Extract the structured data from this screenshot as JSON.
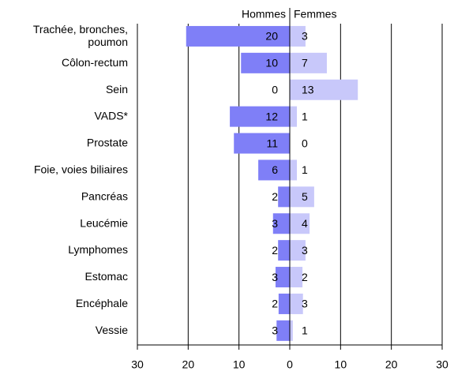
{
  "chart_data": {
    "type": "butterfly",
    "categories": [
      "Trachée, bronches,\npoumon",
      "Côlon-rectum",
      "Sein",
      "VADS*",
      "Prostate",
      "Foie, voies biliaires",
      "Pancréas",
      "Leucémie",
      "Lymphomes",
      "Estomac",
      "Encéphale",
      "Vessie"
    ],
    "series": [
      {
        "name": "Hommes",
        "color": "#7f7ff7",
        "values": [
          -20.4,
          -9.6,
          0,
          -11.8,
          -11.0,
          -6.2,
          -2.3,
          -3.3,
          -2.3,
          -2.8,
          -2.2,
          -2.6
        ],
        "value_labels": [
          "20",
          "10",
          "0",
          "12",
          "11",
          "6",
          "2",
          "3",
          "2",
          "3",
          "2",
          "3"
        ]
      },
      {
        "name": "Femmes",
        "color": "#c8c8fa",
        "values": [
          3.1,
          7.3,
          13.4,
          1.4,
          0,
          1.4,
          4.8,
          3.9,
          3.1,
          2.5,
          2.6,
          0.6
        ],
        "value_labels": [
          "3",
          "7",
          "13",
          "1",
          "0",
          "1",
          "5",
          "4",
          "3",
          "2",
          "3",
          "1"
        ]
      }
    ],
    "xlim": [
      -30,
      30
    ],
    "xticks": [
      {
        "value": -30,
        "label": "30"
      },
      {
        "value": -20,
        "label": "20"
      },
      {
        "value": -10,
        "label": "10"
      },
      0,
      10,
      20,
      30
    ],
    "grid": true
  }
}
